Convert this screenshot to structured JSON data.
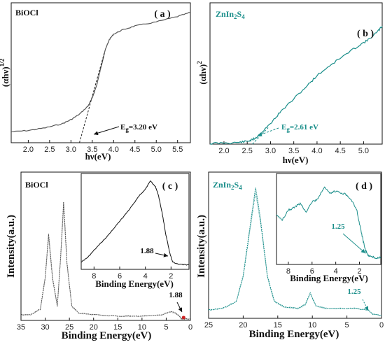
{
  "colors": {
    "gray": "#555555",
    "teal": "#1a8e8a",
    "black": "#111111",
    "red": "#cc2222"
  },
  "chart_data": [
    {
      "id": "a",
      "type": "line",
      "panel_label": "( a )",
      "material": "BiOCl",
      "xlabel": "hν(eV)",
      "ylabel": "(αhν)^1/2",
      "ylabel_parts": [
        "(αhν)",
        "1/2"
      ],
      "xlim": [
        1.6,
        5.8
      ],
      "ylim": [
        0,
        1
      ],
      "xticks": [
        "2.0",
        "2.5",
        "3.0",
        "3.5",
        "4.0",
        "4.5",
        "5.0",
        "5.5"
      ],
      "color": "#555555",
      "annotation": "Eg=3.20 eV",
      "annotation_parts": [
        "E",
        "g",
        "=3.20 eV"
      ],
      "bandgap_ev": 3.2,
      "series": [
        {
          "x": [
            1.6,
            2.0,
            2.4,
            2.8,
            3.0,
            3.2,
            3.4,
            3.5,
            3.6,
            3.7,
            3.8,
            3.9,
            4.0,
            4.2,
            4.5,
            5.0,
            5.5,
            5.8
          ],
          "values": [
            0.08,
            0.09,
            0.11,
            0.14,
            0.17,
            0.21,
            0.27,
            0.33,
            0.42,
            0.55,
            0.68,
            0.76,
            0.8,
            0.83,
            0.86,
            0.89,
            0.93,
            0.96
          ]
        }
      ],
      "tangent": {
        "x": [
          3.2,
          3.78
        ],
        "values": [
          0.0,
          0.66
        ]
      }
    },
    {
      "id": "b",
      "type": "line",
      "panel_label": "( b )",
      "material": "ZnIn2S4",
      "material_parts": [
        "ZnIn",
        "2",
        "S",
        "4"
      ],
      "xlabel": "hν(eV)",
      "ylabel": "(αhν)^2",
      "ylabel_parts": [
        "(αhν)",
        "2"
      ],
      "xlim": [
        1.7,
        5.4
      ],
      "ylim": [
        0,
        1
      ],
      "xticks": [
        "2.0",
        "2.5",
        "3.0",
        "3.5",
        "4.0",
        "4.5",
        "5.0"
      ],
      "color": "#1a8e8a",
      "annotation": "Eg=2.61 eV",
      "annotation_parts": [
        "E",
        "g",
        "=2.61 eV"
      ],
      "bandgap_ev": 2.61,
      "series": [
        {
          "x": [
            1.7,
            2.0,
            2.3,
            2.5,
            2.6,
            2.7,
            2.8,
            3.0,
            3.2,
            3.5,
            3.8,
            4.0,
            4.3,
            4.6,
            4.9,
            5.1,
            5.3,
            5.4
          ],
          "values": [
            0.005,
            0.008,
            0.012,
            0.02,
            0.03,
            0.05,
            0.08,
            0.15,
            0.23,
            0.33,
            0.43,
            0.5,
            0.58,
            0.65,
            0.72,
            0.76,
            0.82,
            0.86
          ]
        }
      ],
      "tangent": {
        "x": [
          2.61,
          2.95
        ],
        "values": [
          0.0,
          0.12
        ]
      }
    },
    {
      "id": "c",
      "type": "line",
      "panel_label": "( c )",
      "material": "BiOCl",
      "xlabel": "Binding Energy(eV)",
      "ylabel": "Intensity(a.u.)",
      "xlim": [
        35,
        0
      ],
      "ylim": [
        0,
        1
      ],
      "xticks": [
        "35",
        "30",
        "25",
        "20",
        "15",
        "10",
        "5",
        "0"
      ],
      "color": "#333333",
      "annotation": "1.88",
      "valence_band_ev": 1.88,
      "series": [
        {
          "x": [
            35,
            33,
            31,
            30,
            29.3,
            28.5,
            27.5,
            26.8,
            26.2,
            25.5,
            24.5,
            23,
            20,
            15,
            10,
            6,
            4,
            3,
            2,
            1.88,
            1,
            0
          ],
          "values": [
            0.04,
            0.04,
            0.08,
            0.3,
            0.6,
            0.3,
            0.1,
            0.45,
            0.82,
            0.4,
            0.1,
            0.05,
            0.04,
            0.03,
            0.03,
            0.04,
            0.06,
            0.05,
            0.02,
            0.01,
            0.01,
            0.01
          ]
        }
      ],
      "inset": {
        "xlabel": "Binding Energy(eV)",
        "xlim": [
          9,
          0.6
        ],
        "ylim": [
          0,
          1
        ],
        "xticks": [
          "8",
          "6",
          "4",
          "2"
        ],
        "annotation": "1.88",
        "series": [
          {
            "x": [
              9,
              8.5,
              8,
              7,
              6,
              5,
              4.5,
              4,
              3.6,
              3.2,
              3,
              2.7,
              2.4,
              2.1,
              1.88,
              1.5,
              1,
              0.6
            ],
            "values": [
              0.05,
              0.1,
              0.18,
              0.33,
              0.5,
              0.68,
              0.78,
              0.86,
              0.95,
              0.88,
              0.8,
              0.6,
              0.35,
              0.15,
              0.05,
              0.03,
              0.02,
              0.02
            ]
          }
        ]
      }
    },
    {
      "id": "d",
      "type": "line",
      "panel_label": "( d )",
      "material": "ZnIn2S4",
      "material_parts": [
        "ZnIn",
        "2",
        "S",
        "4"
      ],
      "xlabel": "Binding Energy(eV)",
      "ylabel": "Intensity(a.u.)",
      "xlim": [
        25,
        0
      ],
      "ylim": [
        0,
        1
      ],
      "xticks": [
        "25",
        "20",
        "15",
        "10",
        "5",
        "0"
      ],
      "color": "#1a8e8a",
      "annotation": "1.25",
      "valence_band_ev": 1.25,
      "series": [
        {
          "x": [
            25,
            23,
            21,
            20,
            19,
            18.2,
            17.5,
            16.5,
            15.5,
            14,
            12,
            11,
            10.3,
            9.5,
            8,
            6,
            4,
            2,
            1.25,
            0
          ],
          "values": [
            0.06,
            0.07,
            0.12,
            0.3,
            0.65,
            0.92,
            0.7,
            0.3,
            0.12,
            0.08,
            0.07,
            0.1,
            0.18,
            0.09,
            0.07,
            0.07,
            0.07,
            0.06,
            0.03,
            0.02
          ]
        }
      ],
      "inset": {
        "xlabel": "Binding Energy(eV)",
        "xlim": [
          9,
          0.2
        ],
        "ylim": [
          0,
          1
        ],
        "xticks": [
          "8",
          "6",
          "4",
          "2"
        ],
        "annotation": "1.25",
        "series": [
          {
            "x": [
              9,
              8.5,
              8,
              7.5,
              7,
              6.5,
              6,
              5.5,
              5,
              4.5,
              4,
              3.5,
              3,
              2.5,
              2.2,
              2,
              1.7,
              1.5,
              1.25,
              1,
              0.5,
              0.2
            ],
            "values": [
              0.55,
              0.5,
              0.62,
              0.65,
              0.7,
              0.6,
              0.72,
              0.75,
              0.9,
              0.82,
              0.85,
              0.83,
              0.8,
              0.7,
              0.6,
              0.45,
              0.25,
              0.12,
              0.06,
              0.04,
              0.03,
              0.03
            ]
          }
        ]
      }
    }
  ]
}
